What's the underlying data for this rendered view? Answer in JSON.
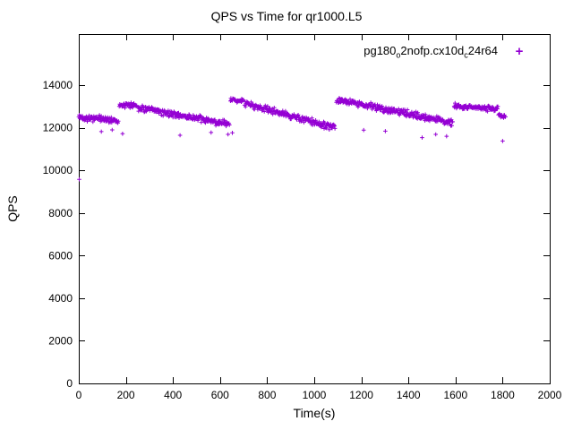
{
  "chart_data": {
    "type": "scatter",
    "title": "QPS vs Time for qr1000.L5",
    "xlabel": "Time(s)",
    "ylabel": "QPS",
    "xlim": [
      0,
      2000
    ],
    "ylim": [
      0,
      16400
    ],
    "xticks": [
      0,
      200,
      400,
      600,
      800,
      1000,
      1200,
      1400,
      1600,
      1800,
      2000
    ],
    "yticks": [
      0,
      2000,
      4000,
      6000,
      8000,
      10000,
      12000,
      14000
    ],
    "grid": false,
    "background": "#ffffff",
    "axis_color": "#000000",
    "legend": {
      "position": "top-right-inside",
      "marker": "+",
      "color": "#9400d3",
      "label_plain": "pg180_o2nofp.cx10d_c24r64",
      "label_parts": [
        {
          "t": "pg180",
          "sub": false
        },
        {
          "t": "o",
          "sub": true
        },
        {
          "t": "2nofp.cx10d",
          "sub": false
        },
        {
          "t": "c",
          "sub": true
        },
        {
          "t": "24r64",
          "sub": false
        }
      ]
    },
    "series": [
      {
        "name": "pg180_o2nofp.cx10d_c24r64",
        "marker": "plus",
        "color": "#9400d3",
        "summary": "QPS hovers between ~11900 and ~13400 for 0-1810s in a repeating sawtooth: flat ~12450 (0-170s), peak ~13050 (175-245s) declining to ~12150 by 640s, jump to ~13300 at 645s declining to ~12000 by 1090s, jump to ~13250 at 1095s declining to ~12250 by 1590s, final plateau ~12950 (1595-1780s) ending ~12550, with sparse low outliers near 11400-11900 and one at ~9580.",
        "synthesis": {
          "seed": 42,
          "step": 2,
          "segments": [
            [
              0,
              168,
              12500,
              12350,
              190
            ],
            [
              172,
              246,
              13020,
              13080,
              140
            ],
            [
              250,
              640,
              12950,
              12150,
              190
            ],
            [
              644,
              700,
              13320,
              13260,
              120
            ],
            [
              704,
              1088,
              13150,
              11980,
              190
            ],
            [
              1094,
              1176,
              13280,
              13200,
              140
            ],
            [
              1180,
              1588,
              13150,
              12230,
              190
            ],
            [
              1594,
              1780,
              13020,
              12880,
              150
            ],
            [
              1782,
              1812,
              12650,
              12520,
              140
            ]
          ],
          "outliers": [
            [
              2,
              9580
            ],
            [
              96,
              11820
            ],
            [
              142,
              11900
            ],
            [
              186,
              11720
            ],
            [
              430,
              11650
            ],
            [
              562,
              11780
            ],
            [
              634,
              11690
            ],
            [
              652,
              11760
            ],
            [
              1210,
              11890
            ],
            [
              1302,
              11840
            ],
            [
              1458,
              11540
            ],
            [
              1516,
              11690
            ],
            [
              1562,
              11600
            ],
            [
              1800,
              11380
            ]
          ]
        }
      }
    ]
  }
}
